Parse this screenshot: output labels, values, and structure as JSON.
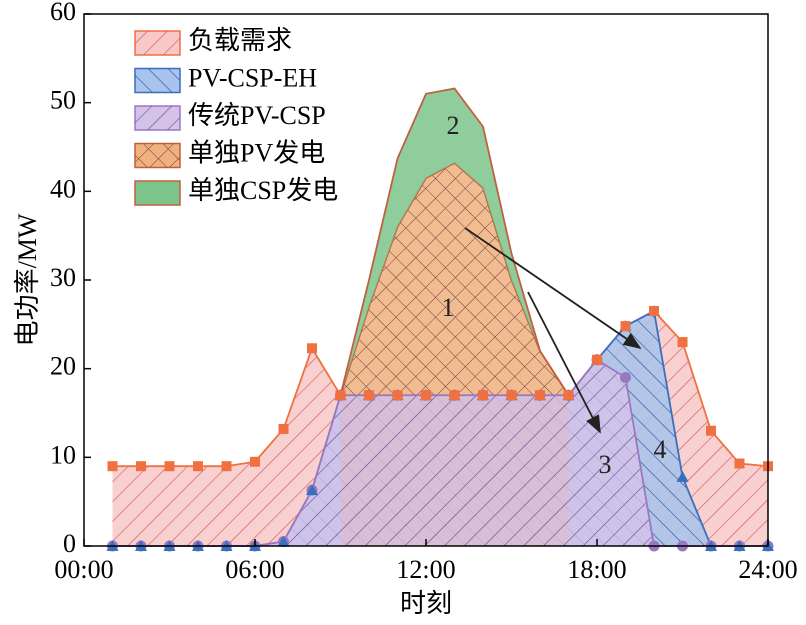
{
  "chart_data": {
    "type": "area",
    "xlabel": "时刻",
    "ylabel": "电功率/MW",
    "x": [
      1,
      2,
      3,
      4,
      5,
      6,
      7,
      8,
      9,
      10,
      11,
      12,
      13,
      14,
      15,
      16,
      17,
      18,
      19,
      20,
      21,
      22,
      23,
      24
    ],
    "xlim": [
      0,
      24
    ],
    "xticks": [
      {
        "value": 0,
        "label": "00:00"
      },
      {
        "value": 6,
        "label": "06:00"
      },
      {
        "value": 12,
        "label": "12:00"
      },
      {
        "value": 18,
        "label": "18:00"
      },
      {
        "value": 24,
        "label": "24:00"
      }
    ],
    "ylim": [
      0,
      60
    ],
    "yticks": [
      0,
      10,
      20,
      30,
      40,
      50,
      60
    ],
    "series": [
      {
        "name": "负载需求",
        "color": "#f07040",
        "fill": "#f8c8c8",
        "hatch": "diag",
        "marker": "square",
        "values": [
          9,
          9,
          9,
          9,
          9,
          9.5,
          13.2,
          22.3,
          17,
          17,
          17,
          17,
          17,
          17,
          17,
          17,
          17,
          21,
          24.8,
          26.5,
          23,
          13,
          9.3,
          9
        ]
      },
      {
        "name": "PV-CSP-EH",
        "color": "#3a6fc0",
        "fill": "#a8c4ec",
        "hatch": "anti",
        "marker": "triangle",
        "values": [
          0,
          0,
          0,
          0,
          0,
          0,
          0.5,
          6.3,
          17,
          17,
          17,
          17,
          17,
          17,
          17,
          17,
          17,
          21,
          24.8,
          26.5,
          7.8,
          0,
          0,
          0
        ]
      },
      {
        "name": "传统PV-CSP",
        "color": "#9a78c0",
        "fill": "#d4c2e8",
        "hatch": "diag",
        "marker": "circle",
        "values": [
          0,
          0,
          0,
          0,
          0,
          0,
          0.5,
          6.3,
          17,
          17,
          17,
          17,
          17,
          17,
          17,
          17,
          17,
          21,
          19,
          0,
          0,
          0,
          0,
          0
        ]
      },
      {
        "name": "单独PV发电",
        "color": "#c06040",
        "fill": "#f0b080",
        "hatch": "cross",
        "marker": null,
        "values": [
          null,
          null,
          null,
          null,
          null,
          null,
          null,
          null,
          17,
          27,
          36,
          41.5,
          43.2,
          40.4,
          30,
          22,
          17,
          null,
          null,
          null,
          null,
          null,
          null,
          null
        ]
      },
      {
        "name": "单独CSP发电",
        "color": "#c06040",
        "fill": "#7cc48c",
        "hatch": null,
        "marker": null,
        "stack_on": 3,
        "values": [
          null,
          null,
          null,
          null,
          null,
          null,
          null,
          null,
          0,
          3,
          7.7,
          9.5,
          8.4,
          6.9,
          3,
          0,
          0,
          null,
          null,
          null,
          null,
          null,
          null,
          null
        ]
      }
    ],
    "annotations": [
      "1",
      "2",
      "3",
      "4"
    ]
  }
}
